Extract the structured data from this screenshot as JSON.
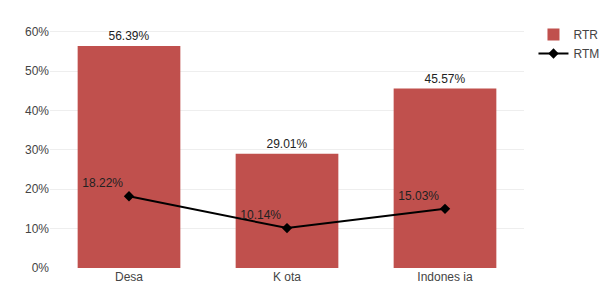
{
  "chart_data": {
    "type": "bar",
    "categories": [
      "Desa",
      "K ota",
      "Indones ia"
    ],
    "series": [
      {
        "name": "RTR",
        "type": "bar",
        "color": "#C0504D",
        "values": [
          56.39,
          29.01,
          45.57
        ],
        "value_labels": [
          "56.39%",
          "29.01%",
          "45.57%"
        ]
      },
      {
        "name": "RTM",
        "type": "line",
        "color": "#000000",
        "marker": "diamond",
        "line_style": "solid",
        "values": [
          18.22,
          10.14,
          15.03
        ],
        "value_labels": [
          "18.22%",
          "10.14%",
          "15.03%"
        ]
      }
    ],
    "ylim": [
      0,
      63
    ],
    "yticks": [
      {
        "value": 0,
        "label": "0%"
      },
      {
        "value": 10,
        "label": "10%"
      },
      {
        "value": 20,
        "label": "20%"
      },
      {
        "value": 30,
        "label": "30%"
      },
      {
        "value": 40,
        "label": "40%"
      },
      {
        "value": 50,
        "label": "50%"
      },
      {
        "value": 60,
        "label": "60%"
      }
    ],
    "grid": true,
    "data_labels": true,
    "legend": "right"
  }
}
